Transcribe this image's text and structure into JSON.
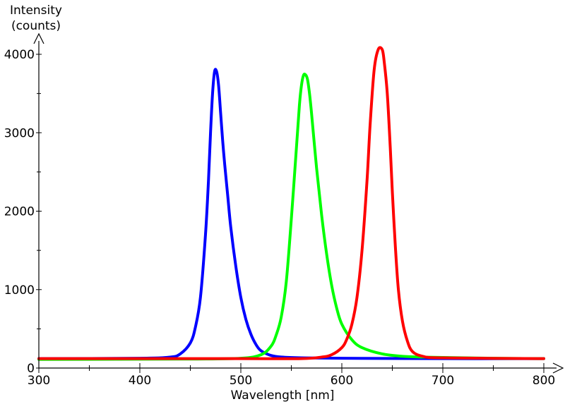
{
  "chart_data": {
    "type": "line",
    "title": "",
    "ylabel_line1": "Intensity",
    "ylabel_line2": "(counts)",
    "xlabel": "Wavelength [nm]",
    "xlim": [
      300,
      800
    ],
    "ylim": [
      0,
      4000
    ],
    "x_ticks": [
      300,
      400,
      500,
      600,
      700,
      800
    ],
    "x_tick_labels": [
      "300",
      "400",
      "500",
      "600",
      "700",
      "800"
    ],
    "x_minor_step": 50,
    "y_ticks": [
      0,
      1000,
      2000,
      3000,
      4000
    ],
    "y_tick_labels": [
      "0",
      "1000",
      "2000",
      "3000",
      "4000"
    ],
    "y_minor_step": 500,
    "grid": false,
    "legend": "none",
    "series": [
      {
        "color": "#0000ff",
        "x": [
          300,
          400,
          430,
          440,
          450,
          455,
          460,
          465,
          468,
          470,
          472,
          474,
          476,
          478,
          480,
          482,
          484,
          487,
          490,
          495,
          500,
          505,
          510,
          515,
          520,
          530,
          540,
          560,
          600,
          700,
          800
        ],
        "y": [
          120,
          125,
          140,
          180,
          320,
          520,
          900,
          1700,
          2400,
          3000,
          3500,
          3780,
          3780,
          3600,
          3250,
          2900,
          2600,
          2200,
          1800,
          1300,
          900,
          620,
          430,
          300,
          220,
          160,
          140,
          130,
          125,
          120,
          120
        ]
      },
      {
        "color": "#00ff00",
        "x": [
          300,
          450,
          500,
          520,
          530,
          535,
          540,
          545,
          550,
          555,
          558,
          560,
          562,
          564,
          566,
          568,
          570,
          575,
          580,
          585,
          590,
          595,
          600,
          610,
          620,
          640,
          660,
          680,
          700,
          750,
          800
        ],
        "y": [
          110,
          115,
          125,
          170,
          280,
          420,
          650,
          1100,
          1900,
          2800,
          3350,
          3600,
          3730,
          3740,
          3680,
          3500,
          3250,
          2550,
          1950,
          1450,
          1050,
          760,
          560,
          360,
          260,
          180,
          150,
          140,
          135,
          125,
          120
        ]
      },
      {
        "color": "#ff0000",
        "x": [
          300,
          500,
          560,
          580,
          590,
          600,
          605,
          610,
          615,
          620,
          625,
          628,
          632,
          636,
          640,
          642,
          645,
          648,
          650,
          653,
          656,
          660,
          665,
          670,
          680,
          700,
          800
        ],
        "y": [
          120,
          120,
          120,
          140,
          170,
          260,
          370,
          560,
          900,
          1500,
          2400,
          3100,
          3800,
          4060,
          4060,
          3900,
          3500,
          2800,
          2250,
          1550,
          1000,
          600,
          340,
          210,
          150,
          130,
          120
        ]
      }
    ]
  }
}
